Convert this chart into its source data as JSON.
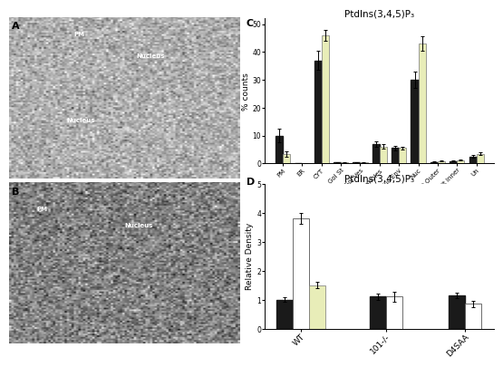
{
  "panel_C": {
    "title": "PtdIns(3,4,5)P₃",
    "ylabel": "% counts",
    "categories": [
      "PM",
      "ER",
      "CYT",
      "Gol St",
      "Gol Ves",
      "Granules",
      "Nuc Env",
      "Nuc",
      "Mit Outer",
      "Mit Inner",
      "Un"
    ],
    "series_black": [
      10,
      0.2,
      37,
      0.3,
      0.3,
      7.0,
      5.5,
      30,
      0.5,
      0.8,
      2.5
    ],
    "series_cream": [
      3.5,
      0.2,
      46,
      0.3,
      0.3,
      6.0,
      5.5,
      43,
      0.8,
      1.2,
      3.5
    ],
    "errors_black": [
      2.5,
      0.05,
      3.5,
      0.05,
      0.05,
      1.0,
      0.8,
      3.0,
      0.15,
      0.15,
      0.4
    ],
    "errors_cream": [
      1.0,
      0.05,
      2.0,
      0.05,
      0.05,
      0.8,
      0.6,
      2.5,
      0.15,
      0.15,
      0.4
    ],
    "ylim": [
      0,
      52
    ],
    "yticks": [
      0,
      10,
      20,
      30,
      40,
      50
    ]
  },
  "panel_D": {
    "title": "PtdIns(3,4,5)P₃",
    "ylabel": "Relative Density",
    "categories": [
      "WT",
      "101-/-",
      "D4SAA"
    ],
    "series_black": [
      1.0,
      1.1,
      1.15
    ],
    "series_white": [
      3.8,
      1.1,
      0.85
    ],
    "series_yellow": [
      1.5,
      0.0,
      0.0
    ],
    "errors_black": [
      0.08,
      0.1,
      0.1
    ],
    "errors_white": [
      0.2,
      0.18,
      0.12
    ],
    "errors_yellow": [
      0.12,
      0.0,
      0.0
    ],
    "ylim": [
      0,
      5
    ],
    "yticks": [
      0,
      1,
      2,
      3,
      4,
      5
    ]
  },
  "color_black": "#1a1a1a",
  "color_cream": "#e8edb8",
  "color_white": "#ffffff",
  "background": "#ffffff",
  "left_bg_top": "#c8c8c8",
  "left_bg_bottom": "#909090"
}
